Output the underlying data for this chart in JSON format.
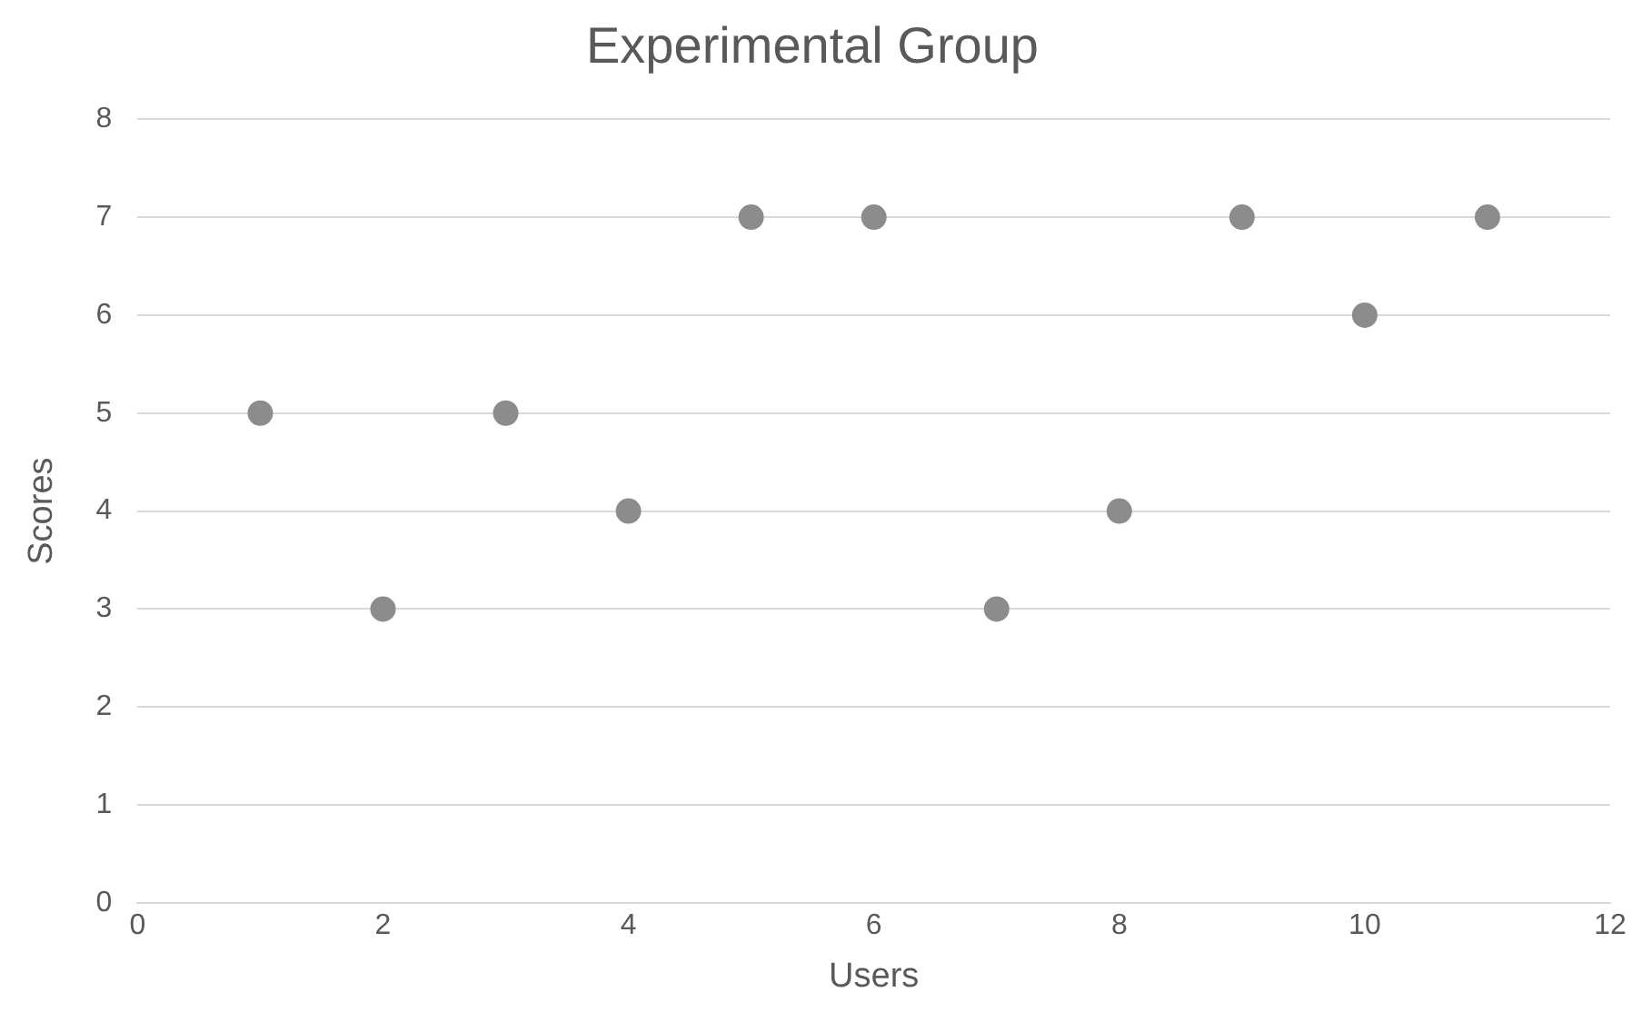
{
  "chart_data": {
    "type": "scatter",
    "title": "Experimental Group",
    "xlabel": "Users",
    "ylabel": "Scores",
    "x": [
      1,
      2,
      3,
      4,
      5,
      6,
      7,
      8,
      9,
      10,
      11
    ],
    "series": [
      {
        "color": "#8c8c8c",
        "values": [
          5,
          3,
          5,
          4,
          7,
          7,
          3,
          4,
          7,
          6,
          7
        ]
      }
    ],
    "xlim": [
      0,
      12
    ],
    "xticks": [
      0,
      2,
      4,
      6,
      8,
      10,
      12
    ],
    "ylim": [
      0,
      8
    ],
    "yticks": [
      0,
      1,
      2,
      3,
      4,
      5,
      6,
      7,
      8
    ],
    "grid": "y",
    "legend": false,
    "marker": "circle"
  }
}
